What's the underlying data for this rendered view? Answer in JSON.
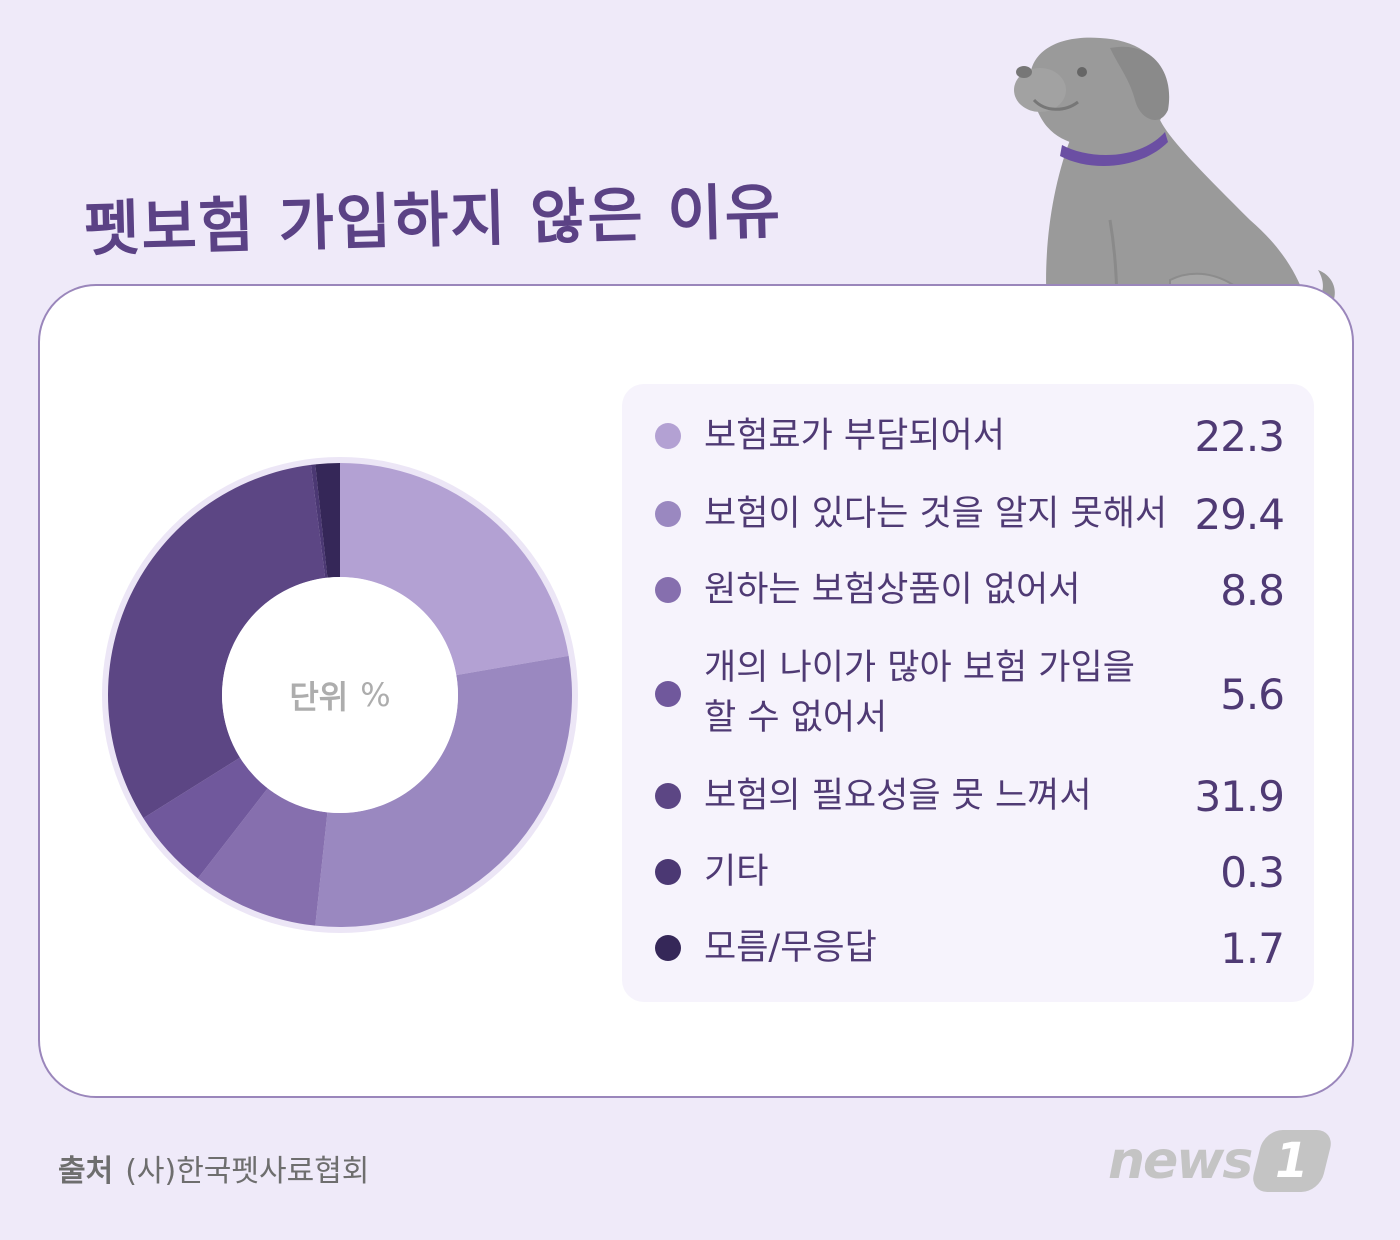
{
  "title": "펫보험 가입하지 않은 이유",
  "chart_data": {
    "type": "pie",
    "center_label": "단위",
    "unit": "%",
    "categories": [
      "보험료가 부담되어서",
      "보험이 있다는 것을 알지 못해서",
      "원하는 보험상품이 없어서",
      "개의 나이가 많아 보험 가입을 할 수 없어서",
      "보험의 필요성을 못 느껴서",
      "기타",
      "모름/무응답"
    ],
    "values": [
      22.3,
      29.4,
      8.8,
      5.6,
      31.9,
      0.3,
      1.7
    ],
    "value_labels": [
      "22.3",
      "29.4",
      "8.8",
      "5.6",
      "31.9",
      "0.3",
      "1.7"
    ],
    "colors": [
      "#b3a1d3",
      "#9a88c0",
      "#866fae",
      "#70589c",
      "#5c4684",
      "#4b3873",
      "#352758"
    ]
  },
  "legend": [
    {
      "line1": "보험료가 부담되어서",
      "line2": ""
    },
    {
      "line1": "보험이 있다는 것을 알지 못해서",
      "line2": ""
    },
    {
      "line1": "원하는 보험상품이 없어서",
      "line2": ""
    },
    {
      "line1": "개의 나이가 많아 보험 가입을",
      "line2": "할 수 없어서"
    },
    {
      "line1": "보험의 필요성을 못 느껴서",
      "line2": ""
    },
    {
      "line1": "기타",
      "line2": ""
    },
    {
      "line1": "모름/무응답",
      "line2": ""
    }
  ],
  "source": {
    "key": "출처",
    "value": "(사)한국펫사료협회"
  },
  "logo": {
    "word": "news",
    "badge": "1"
  },
  "colors": {
    "background": "#efeaf9",
    "accent": "#5b4285",
    "legend_bg": "#f6f3fc",
    "dog_body": "#9a9a9a",
    "dog_collar": "#6b4fa3"
  }
}
